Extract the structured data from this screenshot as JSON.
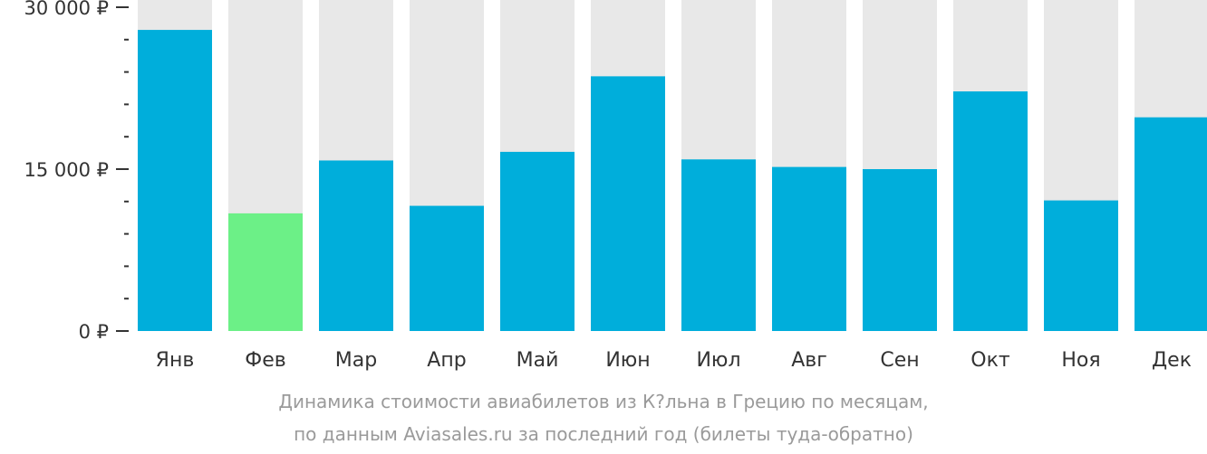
{
  "chart_data": {
    "type": "bar",
    "categories": [
      "Янв",
      "Фев",
      "Мар",
      "Апр",
      "Май",
      "Июн",
      "Июл",
      "Авг",
      "Сен",
      "Окт",
      "Ноя",
      "Дек"
    ],
    "values": [
      27900,
      10900,
      15800,
      11600,
      16600,
      23600,
      15900,
      15200,
      15000,
      22200,
      12100,
      19800
    ],
    "ylim": [
      0,
      30000
    ],
    "yticks": [
      0,
      15000,
      30000
    ],
    "ytick_labels": [
      "0 ₽",
      "15 000 ₽",
      "30 000 ₽"
    ],
    "minor_ticks_per_major": 5,
    "highlight_index": 1,
    "grid": false,
    "colors": {
      "bar": "#00aedb",
      "highlight": "#6cf087",
      "background_bar": "#e8e8e8",
      "axis": "#333333",
      "caption": "#9a9a9a"
    }
  },
  "caption": {
    "line1": "Динамика стоимости авиабилетов из К?льна в Грецию по месяцам,",
    "line2": "по данным Aviasales.ru за последний год (билеты туда-обратно)"
  }
}
